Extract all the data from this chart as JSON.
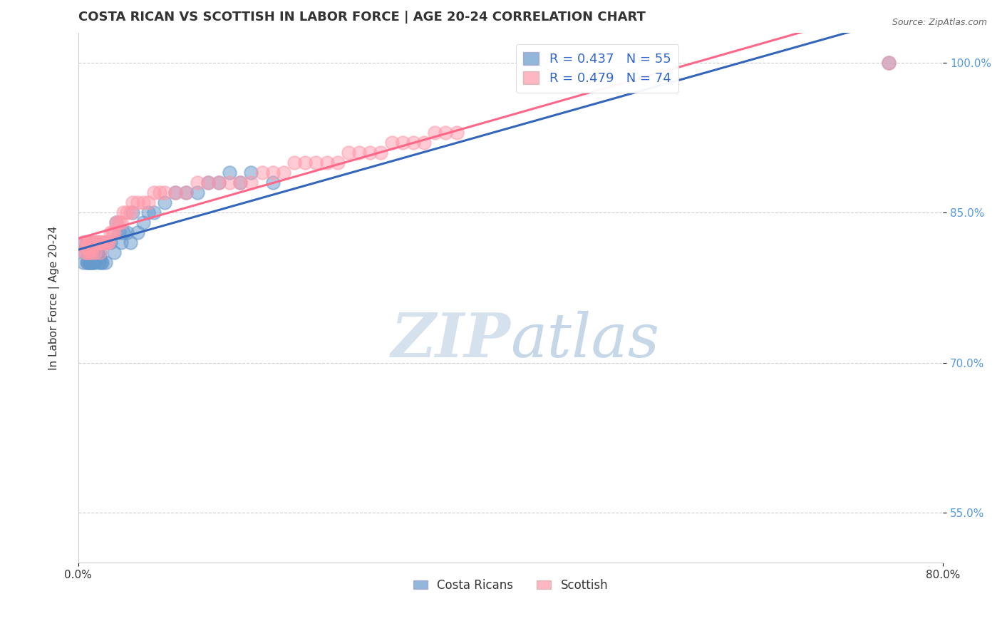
{
  "title": "COSTA RICAN VS SCOTTISH IN LABOR FORCE | AGE 20-24 CORRELATION CHART",
  "source_text": "Source: ZipAtlas.com",
  "ylabel": "In Labor Force | Age 20-24",
  "xlim": [
    0.0,
    0.8
  ],
  "ylim": [
    0.5,
    1.03
  ],
  "ytick_positions": [
    0.55,
    0.7,
    0.85,
    1.0
  ],
  "ytick_labels": [
    "55.0%",
    "70.0%",
    "85.0%",
    "100.0%"
  ],
  "R_blue": 0.437,
  "N_blue": 55,
  "R_pink": 0.479,
  "N_pink": 74,
  "blue_color": "#6699CC",
  "pink_color": "#FF99AA",
  "blue_line_color": "#3366BB",
  "pink_line_color": "#FF6688",
  "watermark_text": "ZIPatlas",
  "background_color": "#FFFFFF",
  "title_fontsize": 13,
  "axis_label_fontsize": 11,
  "tick_fontsize": 11,
  "blue_x": [
    0.005,
    0.005,
    0.006,
    0.007,
    0.008,
    0.008,
    0.009,
    0.009,
    0.01,
    0.01,
    0.01,
    0.011,
    0.011,
    0.011,
    0.012,
    0.012,
    0.013,
    0.013,
    0.014,
    0.015,
    0.016,
    0.017,
    0.018,
    0.018,
    0.019,
    0.02,
    0.02,
    0.021,
    0.022,
    0.025,
    0.027,
    0.03,
    0.033,
    0.035,
    0.038,
    0.04,
    0.042,
    0.045,
    0.048,
    0.05,
    0.055,
    0.06,
    0.065,
    0.07,
    0.08,
    0.09,
    0.1,
    0.11,
    0.12,
    0.13,
    0.14,
    0.15,
    0.16,
    0.18,
    0.75
  ],
  "blue_y": [
    0.8,
    0.82,
    0.81,
    0.815,
    0.82,
    0.8,
    0.8,
    0.81,
    0.81,
    0.8,
    0.82,
    0.8,
    0.81,
    0.815,
    0.8,
    0.81,
    0.8,
    0.815,
    0.8,
    0.8,
    0.82,
    0.81,
    0.82,
    0.81,
    0.8,
    0.805,
    0.81,
    0.8,
    0.8,
    0.8,
    0.82,
    0.82,
    0.81,
    0.84,
    0.83,
    0.82,
    0.83,
    0.83,
    0.82,
    0.85,
    0.83,
    0.84,
    0.85,
    0.85,
    0.86,
    0.87,
    0.87,
    0.87,
    0.88,
    0.88,
    0.89,
    0.88,
    0.89,
    0.88,
    1.0
  ],
  "pink_x": [
    0.005,
    0.006,
    0.007,
    0.008,
    0.008,
    0.009,
    0.009,
    0.01,
    0.01,
    0.011,
    0.011,
    0.012,
    0.012,
    0.013,
    0.013,
    0.014,
    0.015,
    0.015,
    0.016,
    0.017,
    0.018,
    0.019,
    0.02,
    0.02,
    0.021,
    0.022,
    0.023,
    0.025,
    0.027,
    0.028,
    0.03,
    0.032,
    0.033,
    0.035,
    0.038,
    0.04,
    0.042,
    0.045,
    0.048,
    0.05,
    0.055,
    0.06,
    0.065,
    0.07,
    0.075,
    0.08,
    0.09,
    0.1,
    0.11,
    0.12,
    0.13,
    0.14,
    0.15,
    0.16,
    0.17,
    0.18,
    0.19,
    0.2,
    0.21,
    0.22,
    0.23,
    0.24,
    0.25,
    0.26,
    0.27,
    0.28,
    0.29,
    0.3,
    0.31,
    0.32,
    0.33,
    0.34,
    0.35,
    0.75
  ],
  "pink_y": [
    0.82,
    0.81,
    0.815,
    0.82,
    0.81,
    0.82,
    0.815,
    0.81,
    0.82,
    0.82,
    0.815,
    0.82,
    0.81,
    0.82,
    0.815,
    0.82,
    0.82,
    0.81,
    0.82,
    0.82,
    0.82,
    0.82,
    0.82,
    0.81,
    0.82,
    0.82,
    0.82,
    0.82,
    0.82,
    0.82,
    0.83,
    0.83,
    0.83,
    0.84,
    0.84,
    0.84,
    0.85,
    0.85,
    0.85,
    0.86,
    0.86,
    0.86,
    0.86,
    0.87,
    0.87,
    0.87,
    0.87,
    0.87,
    0.88,
    0.88,
    0.88,
    0.88,
    0.88,
    0.88,
    0.89,
    0.89,
    0.89,
    0.9,
    0.9,
    0.9,
    0.9,
    0.9,
    0.91,
    0.91,
    0.91,
    0.91,
    0.92,
    0.92,
    0.92,
    0.92,
    0.93,
    0.93,
    0.93,
    1.0
  ]
}
